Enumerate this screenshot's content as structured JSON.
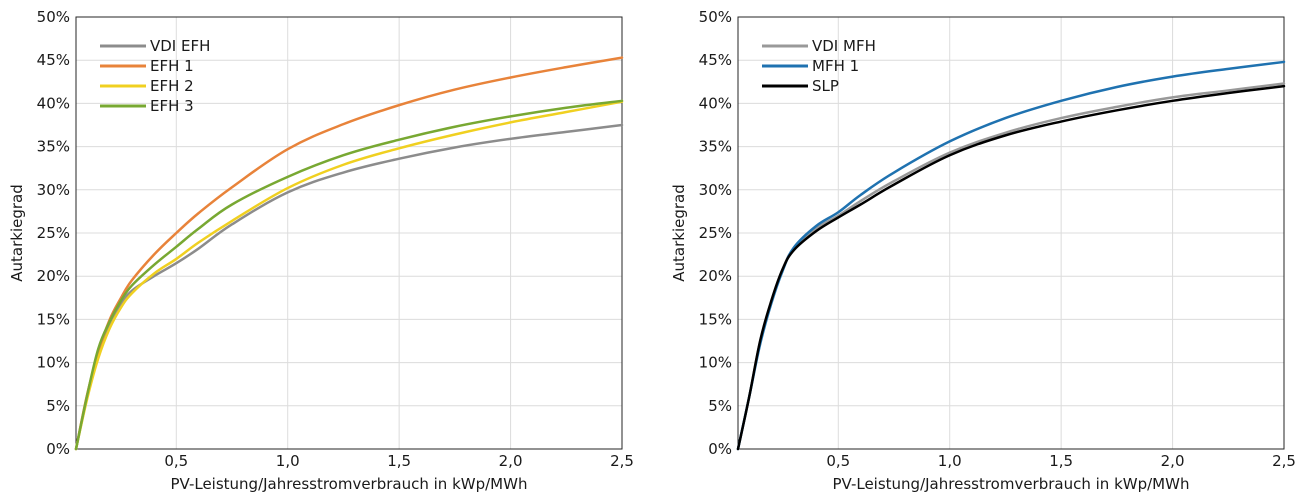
{
  "chart_data": [
    {
      "type": "line",
      "xlabel": "PV-Leistung/Jahresstromverbrauch in kWp/MWh",
      "ylabel": "Autarkiegrad",
      "xlim": [
        0.05,
        2.5
      ],
      "ylim": [
        0,
        50
      ],
      "xticks": [
        0.5,
        1.0,
        1.5,
        2.0,
        2.5
      ],
      "xtick_labels": [
        "0,5",
        "1,0",
        "1,5",
        "2,0",
        "2,5"
      ],
      "yticks": [
        0,
        5,
        10,
        15,
        20,
        25,
        30,
        35,
        40,
        45,
        50
      ],
      "ytick_labels": [
        "0%",
        "5%",
        "10%",
        "15%",
        "20%",
        "25%",
        "30%",
        "35%",
        "40%",
        "45%",
        "50%"
      ],
      "grid": true,
      "legend": "top-left",
      "x": [
        0.05,
        0.1,
        0.15,
        0.2,
        0.25,
        0.3,
        0.4,
        0.5,
        0.6,
        0.75,
        1.0,
        1.25,
        1.5,
        1.75,
        2.0,
        2.25,
        2.5
      ],
      "series": [
        {
          "name": "VDI EFH",
          "color": "#8c8c8c",
          "values": [
            0,
            6.0,
            11.0,
            14.5,
            16.7,
            18.3,
            20.0,
            21.5,
            23.2,
            26.0,
            29.7,
            32.0,
            33.6,
            34.9,
            35.9,
            36.7,
            37.5
          ]
        },
        {
          "name": "EFH 1",
          "color": "#e8833a",
          "values": [
            0,
            6.3,
            11.2,
            14.9,
            17.4,
            19.5,
            22.5,
            25.0,
            27.3,
            30.3,
            34.7,
            37.6,
            39.8,
            41.6,
            43.0,
            44.2,
            45.3
          ]
        },
        {
          "name": "EFH 2",
          "color": "#f0d020",
          "values": [
            0,
            5.8,
            10.5,
            13.9,
            16.3,
            18.0,
            20.3,
            22.0,
            23.9,
            26.4,
            30.2,
            32.9,
            34.8,
            36.4,
            37.8,
            39.0,
            40.2
          ]
        },
        {
          "name": "EFH 3",
          "color": "#78a832",
          "values": [
            0,
            6.2,
            11.6,
            14.7,
            17.1,
            18.9,
            21.3,
            23.4,
            25.5,
            28.3,
            31.5,
            34.0,
            35.8,
            37.3,
            38.5,
            39.5,
            40.3
          ]
        }
      ]
    },
    {
      "type": "line",
      "xlabel": "PV-Leistung/Jahresstromverbrauch in kWp/MWh",
      "ylabel": "Autarkiegrad",
      "xlim": [
        0.05,
        2.5
      ],
      "ylim": [
        0,
        50
      ],
      "xticks": [
        0.5,
        1.0,
        1.5,
        2.0,
        2.5
      ],
      "xtick_labels": [
        "0,5",
        "1,0",
        "1,5",
        "2,0",
        "2,5"
      ],
      "yticks": [
        0,
        5,
        10,
        15,
        20,
        25,
        30,
        35,
        40,
        45,
        50
      ],
      "ytick_labels": [
        "0%",
        "5%",
        "10%",
        "15%",
        "20%",
        "25%",
        "30%",
        "35%",
        "40%",
        "45%",
        "50%"
      ],
      "grid": true,
      "legend": "top-left",
      "x": [
        0.05,
        0.1,
        0.15,
        0.2,
        0.25,
        0.3,
        0.4,
        0.5,
        0.6,
        0.75,
        1.0,
        1.25,
        1.5,
        1.75,
        2.0,
        2.25,
        2.5
      ],
      "series": [
        {
          "name": "VDI MFH",
          "color": "#999999",
          "values": [
            0,
            6.0,
            12.5,
            17.0,
            20.8,
            23.2,
            25.5,
            27.0,
            28.7,
            31.0,
            34.3,
            36.6,
            38.3,
            39.6,
            40.7,
            41.5,
            42.3
          ]
        },
        {
          "name": "MFH 1",
          "color": "#1f72b0",
          "values": [
            0,
            6.0,
            12.2,
            16.9,
            20.6,
            23.3,
            25.8,
            27.4,
            29.4,
            32.0,
            35.6,
            38.3,
            40.3,
            41.9,
            43.1,
            44.0,
            44.8
          ]
        },
        {
          "name": "SLP",
          "color": "#000000",
          "values": [
            0,
            6.0,
            12.6,
            17.2,
            20.8,
            23.0,
            25.2,
            26.8,
            28.3,
            30.6,
            34.0,
            36.3,
            37.9,
            39.2,
            40.3,
            41.2,
            42.0
          ]
        }
      ]
    }
  ]
}
